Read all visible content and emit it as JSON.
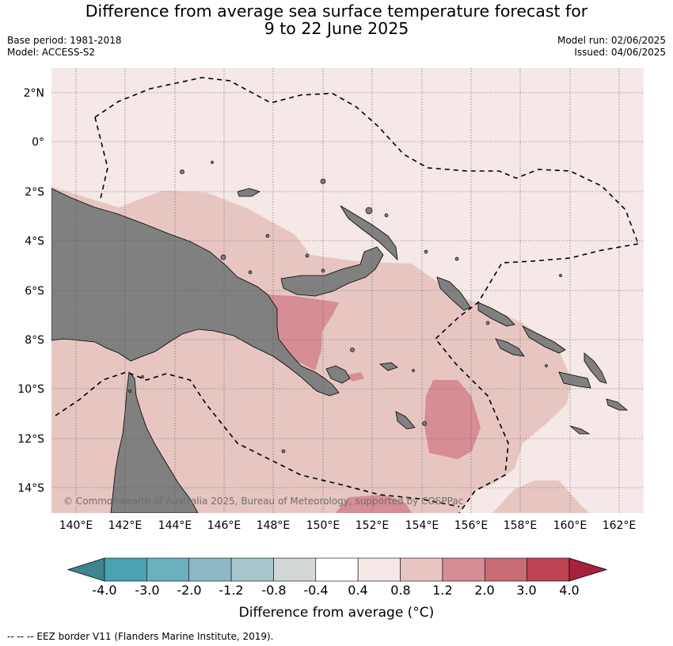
{
  "header": {
    "title_line1": "Difference from average sea surface temperature forecast for",
    "title_line2": "9 to 22 June 2025",
    "base_period": "Base period: 1981-2018",
    "model": "Model: ACCESS-S2",
    "model_run": "Model run: 02/06/2025",
    "issued": "Issued: 04/06/2025"
  },
  "map": {
    "lat_labels": [
      "2°N",
      "0°",
      "2°S",
      "4°S",
      "6°S",
      "8°S",
      "10°S",
      "12°S",
      "14°S"
    ],
    "lon_labels": [
      "140°E",
      "142°E",
      "144°E",
      "146°E",
      "148°E",
      "150°E",
      "152°E",
      "154°E",
      "156°E",
      "158°E",
      "160°E",
      "162°E"
    ],
    "copyright": "© Commonwealth of Australia 2025, Bureau of Meteorology, supported by COSPPac",
    "colors": {
      "ocean_0_4_to_0_8": "#f5e8e6",
      "ocean_0_8_to_1_2": "#e7c6c2",
      "ocean_1_2_to_2_0": "#d68d95",
      "land": "#808080"
    }
  },
  "colorbar": {
    "tick_labels": [
      "-4.0",
      "-3.0",
      "-2.0",
      "-1.2",
      "-0.8",
      "-0.4",
      "0.4",
      "0.8",
      "1.2",
      "2.0",
      "3.0",
      "4.0"
    ],
    "colors": [
      "#3d8590",
      "#4aa2b3",
      "#6cafbe",
      "#8db9c5",
      "#a7c6cb",
      "#d3d6d7",
      "#ffffff",
      "#f5e8e6",
      "#e7c6c2",
      "#d68d95",
      "#c96b74",
      "#bd4352",
      "#a8213c"
    ],
    "label": "Difference from average (°C)"
  },
  "footnote": "--  --  -- EEZ border V11 (Flanders Marine Institute, 2019)."
}
